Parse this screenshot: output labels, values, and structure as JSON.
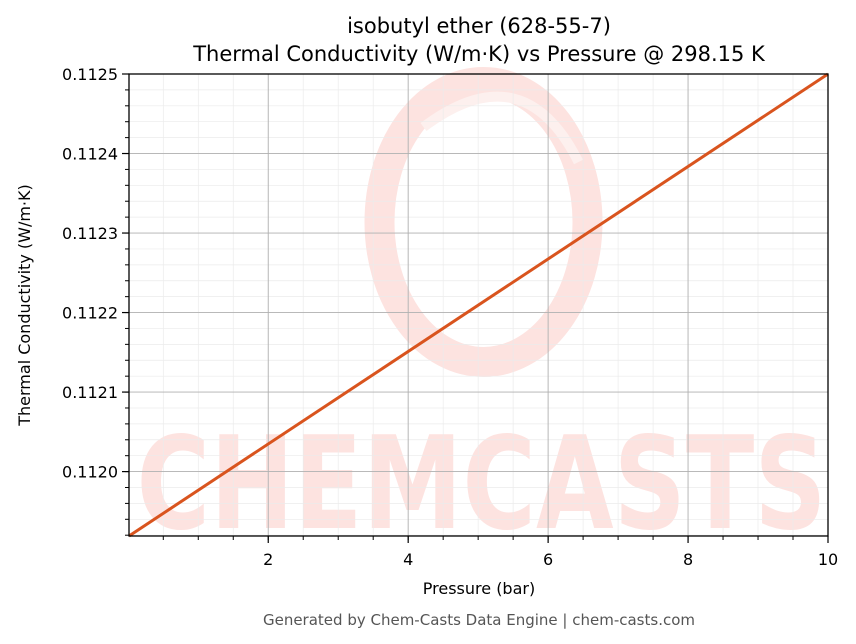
{
  "chart_data": {
    "type": "line",
    "title": "isobutyl ether (628-55-7)",
    "subtitle": "Thermal Conductivity (W/m·K) vs Pressure @ 298.15 K",
    "xlabel": "Pressure (bar)",
    "ylabel": "Thermal Conductivity (W/m·K)",
    "xlim": [
      0.01,
      10
    ],
    "ylim": [
      0.111919,
      0.1125
    ],
    "x_ticks": [
      2,
      4,
      6,
      8,
      10
    ],
    "x_tick_labels": [
      "2",
      "4",
      "6",
      "8",
      "10"
    ],
    "y_ticks": [
      0.112,
      0.1121,
      0.1122,
      0.1123,
      0.1124,
      0.1125
    ],
    "y_tick_labels": [
      "0.1120",
      "0.1121",
      "0.1122",
      "0.1123",
      "0.1124",
      "0.1125"
    ],
    "grid": true,
    "series": [
      {
        "color": "#d9541e",
        "x": [
          0.01,
          10
        ],
        "y": [
          0.111919,
          0.1125
        ]
      }
    ]
  },
  "watermark": {
    "text": "CHEMCASTS",
    "color": "#fde3e0"
  },
  "footer": "Generated by Chem-Casts Data Engine | chem-casts.com"
}
